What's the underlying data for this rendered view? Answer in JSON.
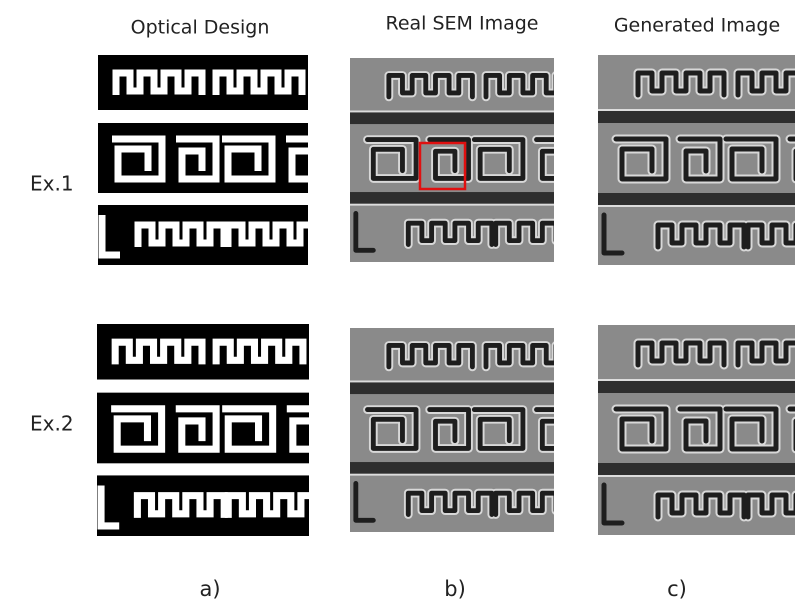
{
  "header": {
    "columns": [
      "Optical Design",
      "Real SEM Image",
      "Generated Image"
    ]
  },
  "rows": [
    "Ex.1",
    "Ex.2"
  ],
  "captions": [
    "a)",
    "b)",
    "c)"
  ]
}
